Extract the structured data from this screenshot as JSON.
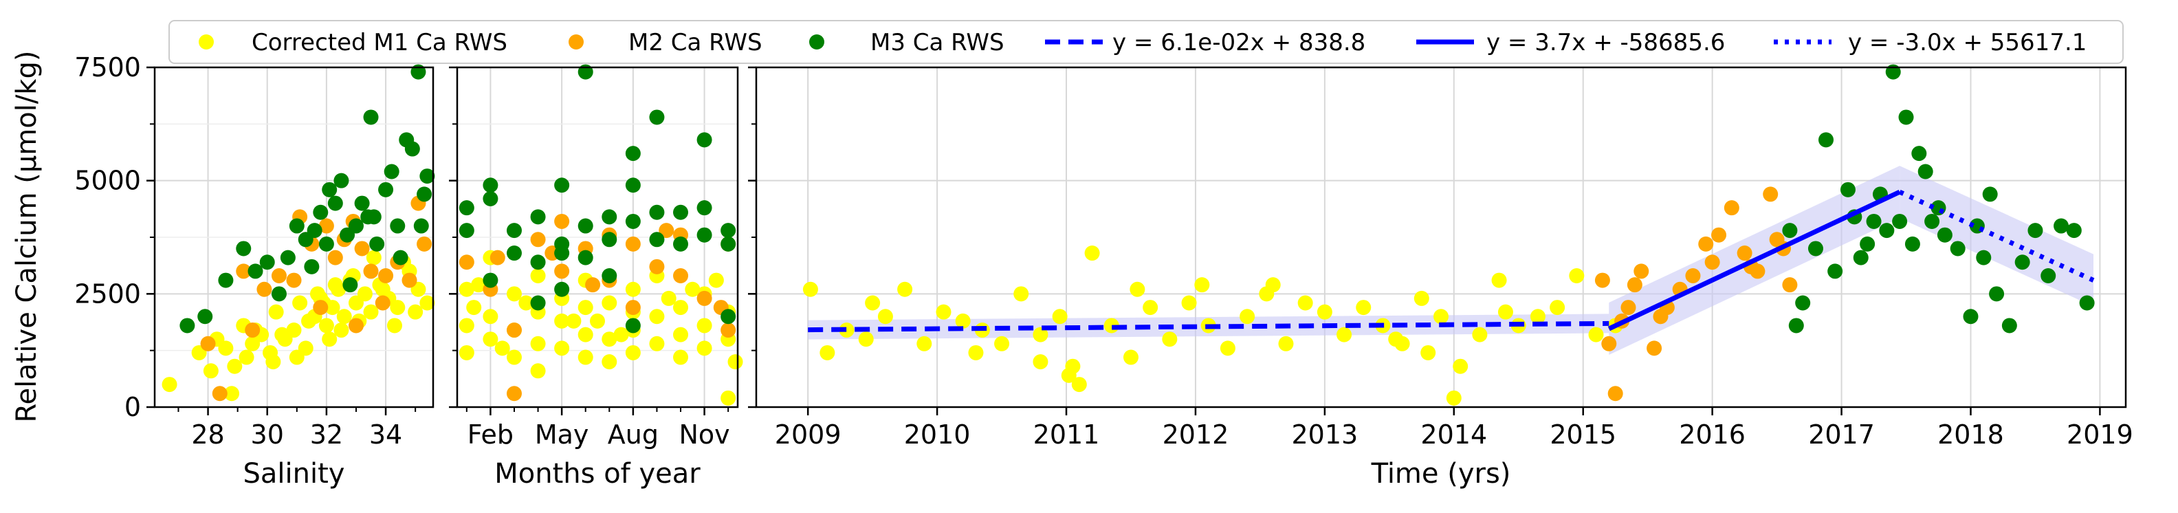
{
  "legend": {
    "items": [
      {
        "label": "Corrected M1 Ca RWS",
        "kind": "marker",
        "color": "#ffff00"
      },
      {
        "label": "M2 Ca RWS",
        "kind": "marker",
        "color": "#ffa500"
      },
      {
        "label": "M3 Ca RWS",
        "kind": "marker",
        "color": "#008000"
      },
      {
        "label": "y = 6.1e-02x + 838.8",
        "kind": "line",
        "dash": "dashed",
        "color": "#0000ff"
      },
      {
        "label": "y = 3.7x + -58685.6",
        "kind": "line",
        "dash": "solid",
        "color": "#0000ff"
      },
      {
        "label": "y = -3.0x + 55617.1",
        "kind": "line",
        "dash": "dotted",
        "color": "#0000ff"
      }
    ]
  },
  "colors": {
    "m1": "#ffff00",
    "m2": "#ffa500",
    "m3": "#008000",
    "fit": "#0000ff",
    "band": "#c9c9f5"
  },
  "chart_data": [
    {
      "type": "scatter",
      "xlabel": "Salinity",
      "ylabel": "Relative Calcium (µmol/kg)",
      "xlim": [
        26.2,
        35.6
      ],
      "ylim": [
        0,
        7500
      ],
      "xticks": [
        28,
        30,
        32,
        34
      ],
      "xtick_labels": [
        "28",
        "30",
        "32",
        "34"
      ],
      "yticks": [
        0,
        2500,
        5000,
        7500
      ],
      "ytick_labels": [
        "0",
        "2500",
        "5000",
        "7500"
      ],
      "grid": true,
      "series": [
        {
          "name": "Corrected M1 Ca RWS",
          "x": [
            26.7,
            27.7,
            28.1,
            28.3,
            28.6,
            28.9,
            29.2,
            29.5,
            29.8,
            30.1,
            30.3,
            30.6,
            30.9,
            31.1,
            31.4,
            31.6,
            31.8,
            32.0,
            32.2,
            32.4,
            32.6,
            32.8,
            33.0,
            33.3,
            33.5,
            33.8,
            34.1,
            34.4,
            34.8,
            35.1,
            35.4,
            29.6,
            30.2,
            31.0,
            31.7,
            32.3,
            33.1,
            33.9,
            34.6,
            30.5,
            31.3,
            32.1,
            32.9,
            33.6,
            34.3,
            35.0,
            28.8,
            29.3,
            31.9,
            32.5
          ],
          "y": [
            500,
            1200,
            800,
            1500,
            1300,
            900,
            1800,
            1400,
            1600,
            1200,
            2100,
            1500,
            1700,
            2300,
            1900,
            2000,
            2400,
            1800,
            2200,
            2600,
            2000,
            2800,
            2300,
            2500,
            2100,
            2700,
            2400,
            2200,
            3000,
            2600,
            2300,
            1700,
            1000,
            1100,
            2500,
            2700,
            1900,
            2600,
            3200,
            1600,
            1300,
            1500,
            2900,
            3300,
            1800,
            2100,
            300,
            1100,
            2300,
            1700
          ]
        },
        {
          "name": "M2 Ca RWS",
          "x": [
            28.0,
            28.4,
            29.2,
            29.5,
            30.4,
            31.1,
            31.5,
            32.0,
            32.3,
            32.6,
            33.2,
            33.5,
            33.9,
            34.4,
            34.8,
            35.1,
            35.3,
            30.9,
            31.8,
            32.9,
            29.9,
            34.0,
            33.0
          ],
          "y": [
            1400,
            300,
            3000,
            1700,
            2900,
            4200,
            3600,
            4000,
            3300,
            3700,
            3500,
            3000,
            2300,
            3200,
            2800,
            4500,
            3600,
            2800,
            2200,
            4100,
            2600,
            2900,
            1800
          ]
        },
        {
          "name": "M3 Ca RWS",
          "x": [
            27.3,
            27.9,
            28.6,
            29.2,
            29.6,
            30.0,
            30.4,
            30.7,
            31.0,
            31.3,
            31.6,
            31.8,
            32.0,
            32.1,
            32.3,
            32.5,
            32.7,
            33.0,
            33.2,
            33.4,
            33.5,
            33.7,
            34.0,
            34.2,
            34.4,
            34.7,
            34.9,
            35.1,
            35.3,
            35.4,
            31.5,
            32.8,
            33.6,
            34.5,
            35.2
          ],
          "y": [
            1800,
            2000,
            2800,
            3500,
            3000,
            3200,
            2500,
            3300,
            4000,
            3700,
            3900,
            4300,
            3600,
            4800,
            4500,
            5000,
            3800,
            4000,
            4500,
            4200,
            6400,
            3600,
            4800,
            5200,
            4000,
            5900,
            5700,
            7400,
            4700,
            5100,
            3100,
            2700,
            4200,
            3300,
            4000
          ]
        }
      ]
    },
    {
      "type": "scatter",
      "xlabel": "Months of year",
      "xlim": [
        0.6,
        12.4
      ],
      "ylim": [
        0,
        7500
      ],
      "xticks": [
        2,
        5,
        8,
        11
      ],
      "xtick_labels": [
        "Feb",
        "May",
        "Aug",
        "Nov"
      ],
      "grid": true,
      "series": [
        {
          "name": "Corrected M1 Ca RWS",
          "x": [
            1,
            1,
            1,
            1.3,
            2,
            2,
            2,
            3,
            3,
            3,
            4,
            4,
            4,
            4,
            5,
            5,
            5,
            6,
            6,
            6,
            6,
            7,
            7,
            7,
            8,
            8,
            8,
            8,
            9,
            9,
            9,
            10,
            10,
            10,
            11,
            11,
            11,
            12,
            12,
            12,
            1.5,
            3.5,
            5.5,
            7.5,
            9.5,
            11.5,
            2.5,
            6.5,
            10.5,
            12.3
          ],
          "y": [
            2600,
            1800,
            1200,
            2200,
            3300,
            2000,
            1500,
            2500,
            1700,
            1100,
            2900,
            2100,
            1400,
            800,
            2400,
            1900,
            1300,
            2200,
            1600,
            1100,
            2800,
            2300,
            1500,
            1000,
            2100,
            1700,
            1200,
            2600,
            2000,
            1400,
            2900,
            2200,
            1600,
            1100,
            2500,
            1800,
            1300,
            2100,
            1500,
            200,
            2700,
            2300,
            1900,
            1600,
            2400,
            2800,
            1300,
            1900,
            2600,
            1000
          ]
        },
        {
          "name": "M2 Ca RWS",
          "x": [
            1,
            2,
            3,
            3,
            4,
            5,
            5,
            6,
            7,
            7,
            8,
            8,
            9,
            10,
            10,
            11,
            12,
            12,
            2.3,
            6.3,
            9.4,
            4.6,
            11.7
          ],
          "y": [
            3200,
            2600,
            1700,
            300,
            3700,
            4100,
            3000,
            3500,
            2800,
            3800,
            2200,
            3600,
            3100,
            2900,
            3800,
            2400,
            3600,
            1700,
            3300,
            2700,
            3900,
            3400,
            2200
          ]
        },
        {
          "name": "M3 Ca RWS",
          "x": [
            1,
            1,
            2,
            2,
            2,
            3,
            3,
            4,
            4,
            4,
            5,
            5,
            5,
            5,
            6,
            6,
            6,
            7,
            7,
            7,
            8,
            8,
            8,
            8,
            9,
            9,
            9,
            10,
            10,
            11,
            11,
            11,
            12,
            12,
            12
          ],
          "y": [
            3900,
            4400,
            4600,
            4900,
            2800,
            3400,
            3900,
            4200,
            3200,
            2300,
            4900,
            3600,
            2600,
            3400,
            7400,
            4000,
            3300,
            3700,
            4200,
            2900,
            5600,
            4900,
            4100,
            1800,
            3700,
            4300,
            6400,
            3600,
            4300,
            4400,
            5900,
            3800,
            3900,
            3600,
            2000
          ]
        }
      ]
    },
    {
      "type": "scatter",
      "xlabel": "Time (yrs)",
      "xlim": [
        2008.6,
        2019.2
      ],
      "ylim": [
        0,
        7500
      ],
      "xticks": [
        2009,
        2010,
        2011,
        2012,
        2013,
        2014,
        2015,
        2016,
        2017,
        2018,
        2019
      ],
      "xtick_labels": [
        "2009",
        "2010",
        "2011",
        "2012",
        "2013",
        "2014",
        "2015",
        "2016",
        "2017",
        "2018",
        "2019"
      ],
      "grid": true,
      "series": [
        {
          "name": "Corrected M1 Ca RWS",
          "x": [
            2009.02,
            2009.15,
            2009.3,
            2009.45,
            2009.6,
            2009.75,
            2009.9,
            2010.05,
            2010.2,
            2010.35,
            2010.5,
            2010.65,
            2010.8,
            2010.95,
            2011.02,
            2011.1,
            2011.2,
            2011.35,
            2011.5,
            2011.65,
            2011.8,
            2011.95,
            2012.1,
            2012.25,
            2012.4,
            2012.55,
            2012.7,
            2012.85,
            2013.0,
            2013.15,
            2013.3,
            2013.45,
            2013.6,
            2013.75,
            2013.9,
            2014.0,
            2014.05,
            2014.2,
            2014.35,
            2014.5,
            2014.65,
            2014.8,
            2014.95,
            2015.1,
            2015.25,
            2009.5,
            2010.3,
            2011.55,
            2012.6,
            2013.55,
            2014.4,
            2010.8,
            2012.05,
            2013.8,
            2011.05
          ],
          "y": [
            2600,
            1200,
            1700,
            1500,
            2000,
            2600,
            1400,
            2100,
            1900,
            1700,
            1400,
            2500,
            1600,
            2000,
            700,
            500,
            3400,
            1800,
            1100,
            2200,
            1500,
            2300,
            1800,
            1300,
            2000,
            2500,
            1400,
            2300,
            2100,
            1600,
            2200,
            1800,
            1400,
            2400,
            2000,
            200,
            900,
            1600,
            2800,
            1800,
            2000,
            2200,
            2900,
            1600,
            1800,
            2300,
            1200,
            2600,
            2700,
            1500,
            2100,
            1000,
            2700,
            1200,
            900
          ]
        },
        {
          "name": "M2 Ca RWS",
          "x": [
            2015.15,
            2015.2,
            2015.25,
            2015.3,
            2015.35,
            2015.45,
            2015.55,
            2015.65,
            2015.75,
            2015.85,
            2015.95,
            2016.05,
            2016.15,
            2016.25,
            2016.35,
            2016.45,
            2016.55,
            2016.6,
            2015.4,
            2016.0,
            2016.3,
            2016.5,
            2015.6
          ],
          "y": [
            2800,
            1400,
            300,
            1900,
            2200,
            3000,
            1300,
            2200,
            2600,
            2900,
            3600,
            3800,
            4400,
            3400,
            3000,
            4700,
            3500,
            2700,
            2700,
            3200,
            3100,
            3700,
            2000
          ]
        },
        {
          "name": "M3 Ca RWS",
          "x": [
            2016.6,
            2016.65,
            2016.7,
            2016.8,
            2016.88,
            2016.95,
            2017.05,
            2017.1,
            2017.15,
            2017.2,
            2017.25,
            2017.3,
            2017.35,
            2017.4,
            2017.45,
            2017.5,
            2017.55,
            2017.6,
            2017.65,
            2017.7,
            2017.75,
            2017.8,
            2017.9,
            2018.0,
            2018.05,
            2018.1,
            2018.15,
            2018.2,
            2018.3,
            2018.4,
            2018.5,
            2018.6,
            2018.7,
            2018.8,
            2018.9
          ],
          "y": [
            3900,
            1800,
            2300,
            3500,
            5900,
            3000,
            4800,
            4200,
            3300,
            3600,
            4100,
            4700,
            3900,
            7400,
            4100,
            6400,
            3600,
            5600,
            5200,
            4100,
            4400,
            3800,
            3500,
            2000,
            4000,
            3300,
            4700,
            2500,
            1800,
            3200,
            3900,
            2900,
            4000,
            3900,
            2300
          ]
        }
      ],
      "fits": [
        {
          "label": "y = 6.1e-02x + 838.8",
          "dash": "dashed",
          "x": [
            2009.0,
            2015.2
          ],
          "y": [
            1707,
            1846
          ]
        },
        {
          "label": "y = 3.7x + -58685.6",
          "dash": "solid",
          "x": [
            2015.2,
            2017.45
          ],
          "y": [
            1730,
            4750
          ]
        },
        {
          "label": "y = -3.0x + 55617.1",
          "dash": "dotted",
          "x": [
            2017.45,
            2018.95
          ],
          "y": [
            4750,
            2800
          ]
        }
      ]
    }
  ]
}
